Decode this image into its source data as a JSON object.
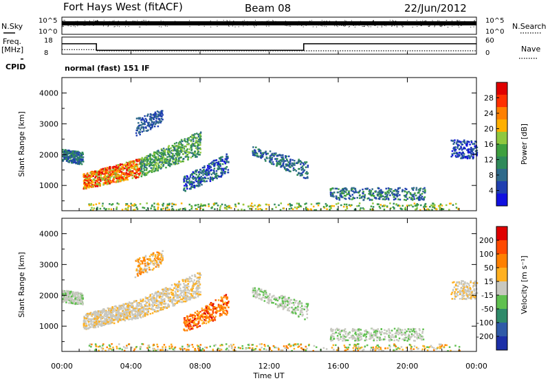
{
  "header": {
    "radar": "Fort Hays West (fitACF)",
    "beam": "Beam 08",
    "date": "22/Jun/2012"
  },
  "panels": {
    "nsky": {
      "label": "N.Sky",
      "ticks": [
        "10^5",
        "10^0"
      ]
    },
    "nsearch": {
      "label": "N.Search",
      "ticks": [
        "10^5",
        "10^0"
      ]
    },
    "freq": {
      "label_line1": "Freq.",
      "label_line2": "[MHz]",
      "ticks": [
        "18",
        "8"
      ]
    },
    "nave": {
      "label": "Nave",
      "ticks": [
        "60",
        "0"
      ]
    },
    "cpid": {
      "label": "CPID",
      "text": "normal (fast) 151 IF"
    }
  },
  "chart_data": [
    {
      "type": "heatmap",
      "name": "Power",
      "ylabel": "Slant Range [km]",
      "ylim": [
        180,
        4500
      ],
      "yticks": [
        1000,
        2000,
        3000,
        4000
      ],
      "xlim": [
        0,
        24
      ],
      "colorbar": {
        "label": "Power [dB]",
        "ticks": [
          "4",
          "8",
          "12",
          "16",
          "20",
          "24",
          "28"
        ]
      },
      "colors": [
        "#1010e0",
        "#1f3fb0",
        "#2f6a8a",
        "#2f8a5a",
        "#3fa03f",
        "#8fc83f",
        "#ffb000",
        "#ff8000",
        "#ff3000",
        "#e00000"
      ]
    },
    {
      "type": "heatmap",
      "name": "Velocity",
      "ylabel": "Slant Range [km]",
      "xlabel": "Time UT",
      "ylim": [
        180,
        4500
      ],
      "yticks": [
        1000,
        2000,
        3000,
        4000
      ],
      "xlim": [
        0,
        24
      ],
      "xticks": [
        "00:00",
        "04:00",
        "08:00",
        "12:00",
        "16:00",
        "20:00",
        "00:00"
      ],
      "colorbar": {
        "label": "Velocity [m s⁻¹]",
        "ticks": [
          "200",
          "100",
          "50",
          "15",
          "-15",
          "-50",
          "-100",
          "-200"
        ]
      },
      "colors": [
        "#1c2fa8",
        "#2f5aa8",
        "#2f8a6a",
        "#5fc04f",
        "#c8c8c0",
        "#ffb020",
        "#ff8000",
        "#ff4a00",
        "#e00000"
      ]
    }
  ],
  "freq_series": {
    "x": [
      0,
      2,
      2,
      14,
      14,
      24
    ],
    "y": [
      14.1,
      14.1,
      10.3,
      10.3,
      14.1,
      14.1
    ]
  },
  "nave_series": {
    "x": [
      0,
      2,
      2,
      24
    ],
    "y": [
      16,
      16,
      12,
      12
    ]
  }
}
